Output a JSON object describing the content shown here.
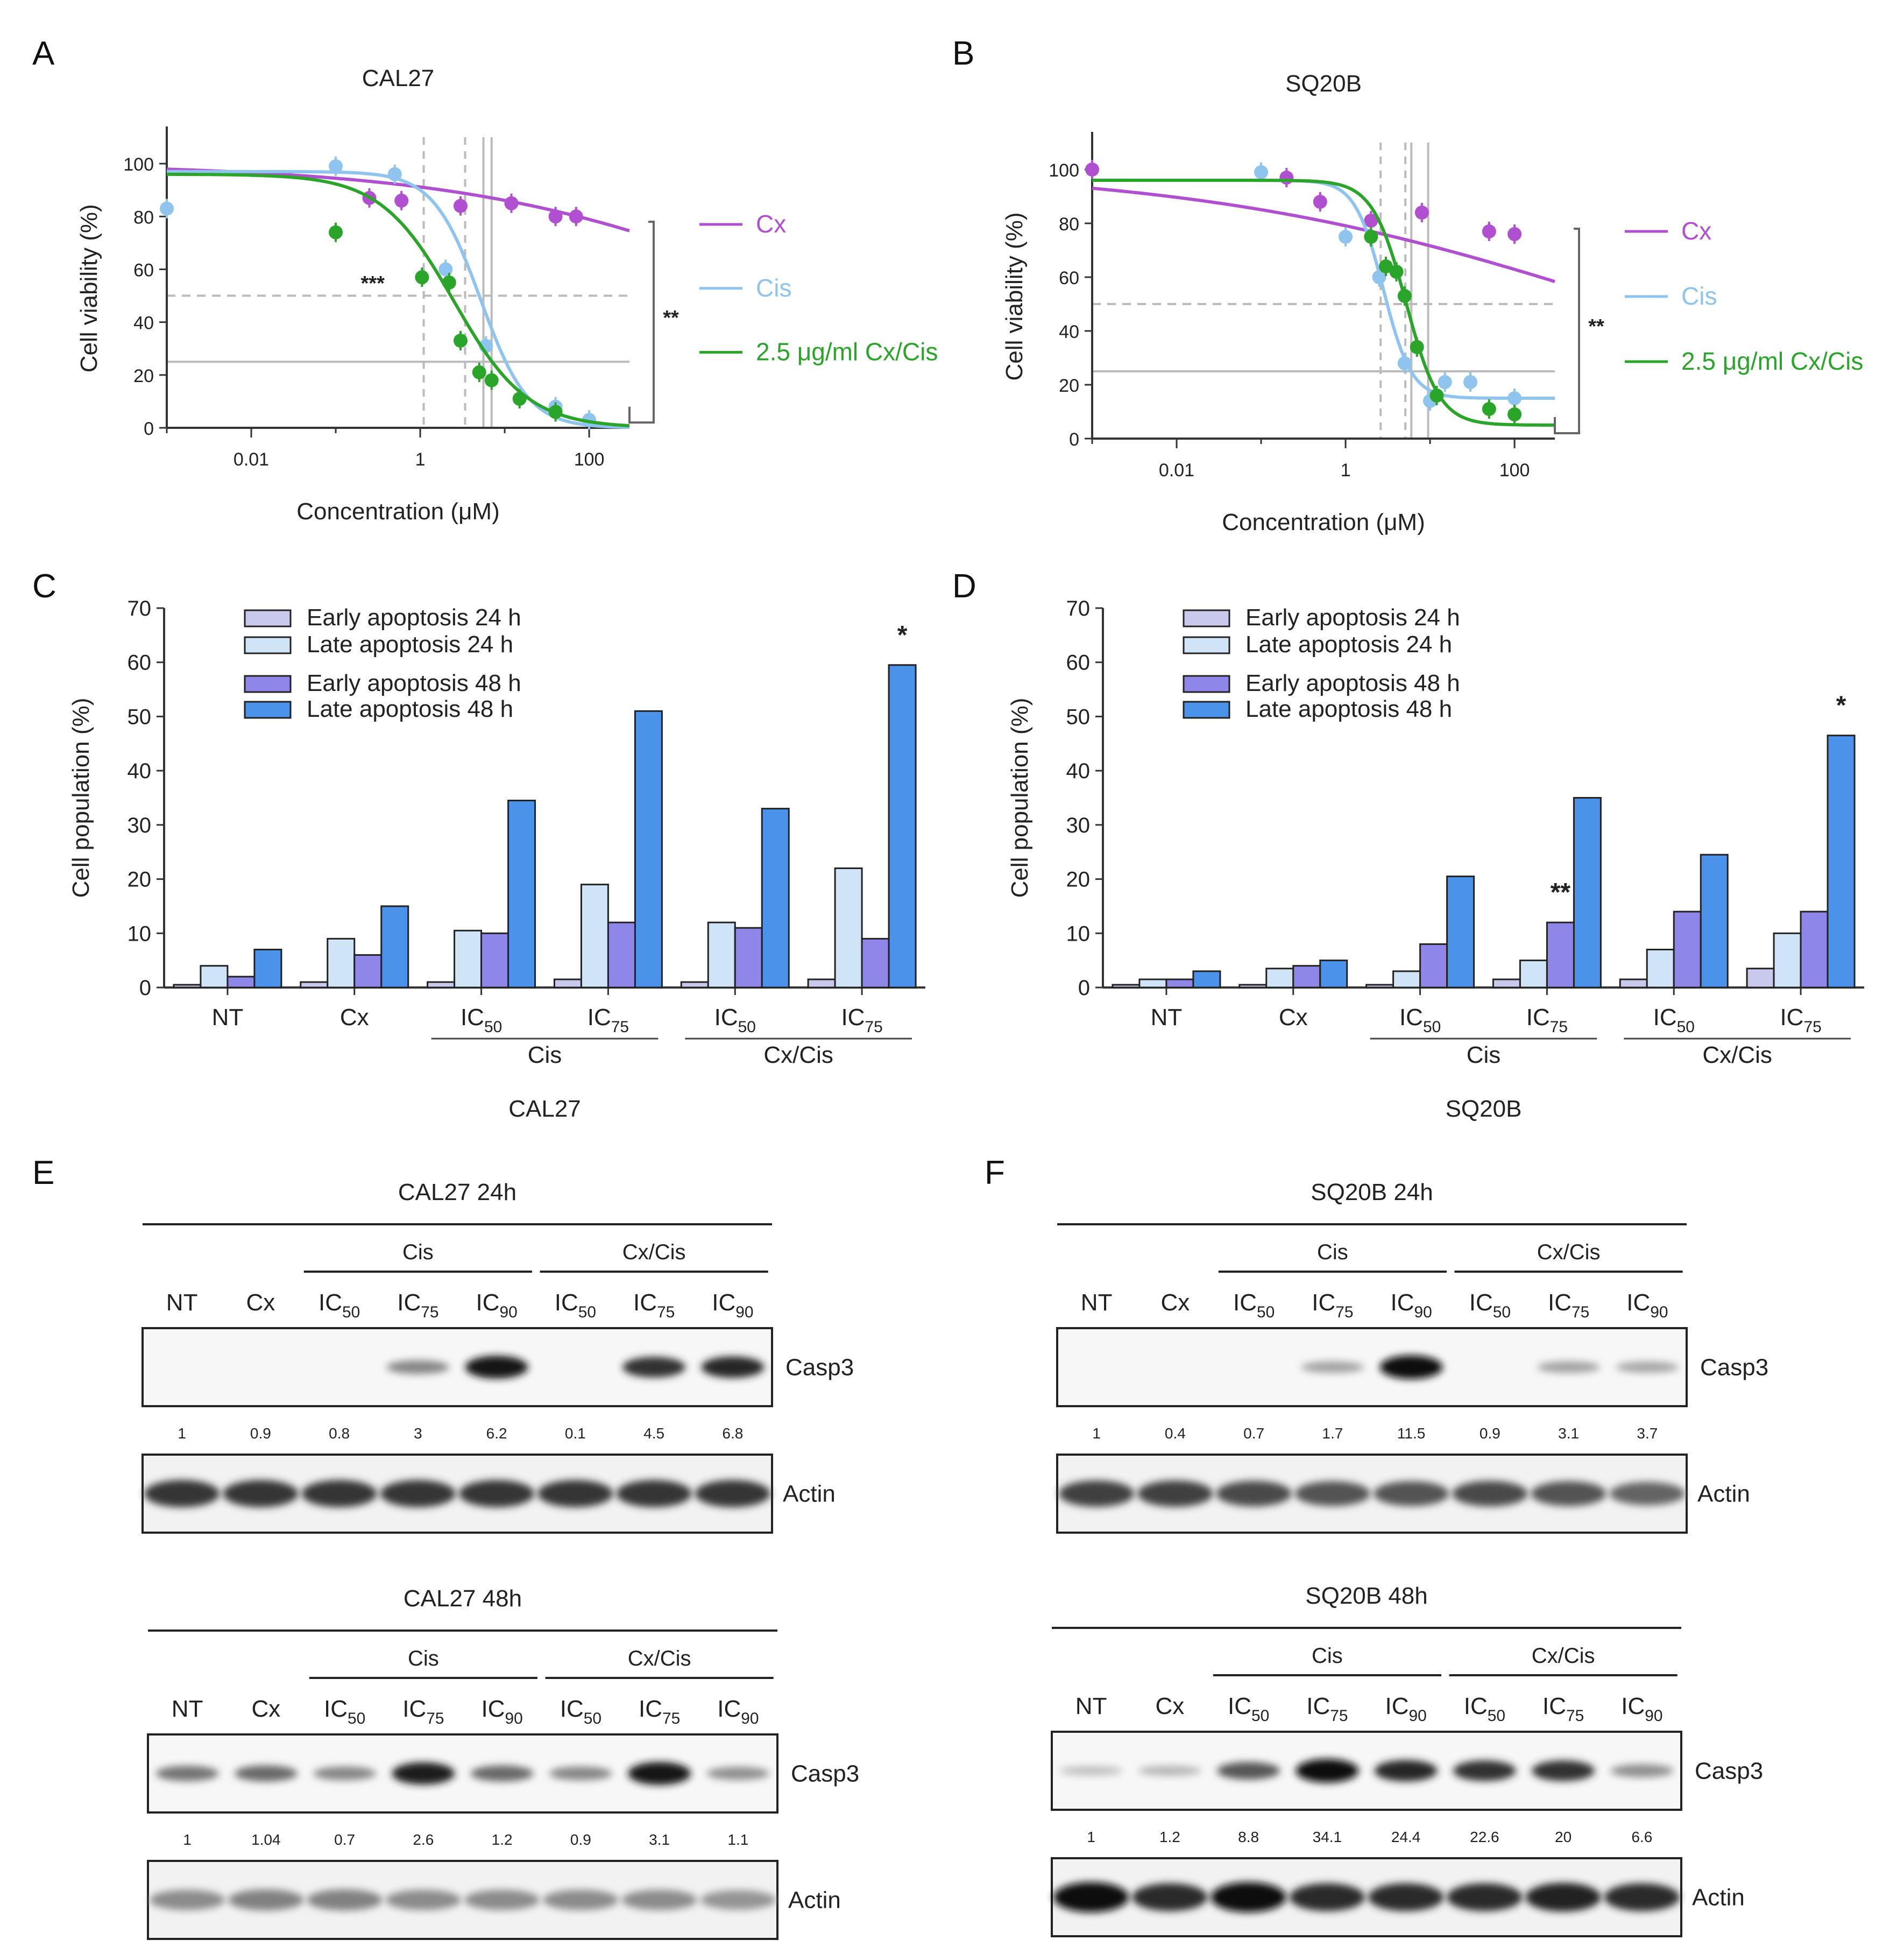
{
  "panel_letters": [
    "A",
    "B",
    "C",
    "D",
    "E",
    "F"
  ],
  "colors": {
    "cx": "#b04fcf",
    "cis": "#8ec4ee",
    "combo": "#2aa52a",
    "early24": "#c9c9ee",
    "late24": "#cfe4f6",
    "early48": "#8f86ea",
    "late48": "#4b93ea",
    "grid": "#bbbbbb"
  },
  "chart_data": [
    {
      "id": "A",
      "type": "line",
      "title": "CAL27",
      "xlabel": "Concentration (μM)",
      "ylabel": "Cell viability (%)",
      "xscale": "log",
      "xlim": [
        0.001,
        300
      ],
      "ylim": [
        0,
        110
      ],
      "xticks": [
        0.01,
        1,
        100
      ],
      "xtick_labels": [
        "0.01",
        "1",
        "100"
      ],
      "yticks": [
        0,
        20,
        40,
        60,
        80,
        100
      ],
      "ref_lines_y": [
        {
          "y": 50,
          "style": "dashed"
        },
        {
          "y": 25,
          "style": "solid"
        }
      ],
      "ref_lines_x": [
        {
          "x": 1.1,
          "style": "dashed"
        },
        {
          "x": 3.4,
          "style": "dashed"
        },
        {
          "x": 5.6,
          "style": "solid"
        },
        {
          "x": 7.0,
          "style": "solid"
        }
      ],
      "legend": [
        "Cx",
        "Cis",
        "2.5 μg/ml Cx/Cis"
      ],
      "significance": [
        "***",
        "**"
      ],
      "series": [
        {
          "name": "Cx",
          "color_key": "cx",
          "points": [
            [
              0.25,
              87
            ],
            [
              0.6,
              86
            ],
            [
              3,
              84
            ],
            [
              12,
              85
            ],
            [
              40,
              80
            ],
            [
              70,
              80
            ]
          ],
          "curve": {
            "top": 100,
            "bottom": 0,
            "ic50": 40000,
            "hill": 0.22
          }
        },
        {
          "name": "Cis",
          "color_key": "cis",
          "points": [
            [
              0.001,
              83
            ],
            [
              0.1,
              99
            ],
            [
              0.5,
              96
            ],
            [
              2,
              60
            ],
            [
              6,
              31
            ],
            [
              40,
              8
            ],
            [
              100,
              3
            ]
          ],
          "curve": {
            "top": 97,
            "bottom": 0,
            "ic50": 5.2,
            "hill": 1.55
          }
        },
        {
          "name": "2.5 μg/ml Cx/Cis",
          "color_key": "combo",
          "points": [
            [
              0.1,
              74
            ],
            [
              1.05,
              57
            ],
            [
              2.2,
              55
            ],
            [
              3,
              33
            ],
            [
              5,
              21
            ],
            [
              7,
              18
            ],
            [
              15,
              11
            ],
            [
              40,
              6
            ]
          ],
          "curve": {
            "top": 96,
            "bottom": 0,
            "ic50": 2.5,
            "hill": 1.0
          }
        }
      ]
    },
    {
      "id": "B",
      "type": "line",
      "title": "SQ20B",
      "xlabel": "Concentration (μM)",
      "ylabel": "Cell viability (%)",
      "xscale": "log",
      "xlim": [
        0.001,
        300
      ],
      "ylim": [
        0,
        110
      ],
      "xticks": [
        0.01,
        1,
        100
      ],
      "xtick_labels": [
        "0.01",
        "1",
        "100"
      ],
      "yticks": [
        0,
        20,
        40,
        60,
        80,
        100
      ],
      "ref_lines_y": [
        {
          "y": 50,
          "style": "dashed"
        },
        {
          "y": 25,
          "style": "solid"
        }
      ],
      "ref_lines_x": [
        {
          "x": 2.6,
          "style": "dashed"
        },
        {
          "x": 5.1,
          "style": "dashed"
        },
        {
          "x": 6.0,
          "style": "solid"
        },
        {
          "x": 9.5,
          "style": "solid"
        }
      ],
      "legend": [
        "Cx",
        "Cis",
        "2.5 μg/ml Cx/Cis"
      ],
      "significance": [
        "**"
      ],
      "series": [
        {
          "name": "Cx",
          "color_key": "cx",
          "points": [
            [
              0.001,
              100
            ],
            [
              0.2,
              97
            ],
            [
              0.5,
              88
            ],
            [
              2,
              81
            ],
            [
              8,
              84
            ],
            [
              50,
              77
            ],
            [
              100,
              76
            ]
          ],
          "curve": {
            "top": 101,
            "bottom": 0,
            "ic50": 1900,
            "hill": 0.17
          }
        },
        {
          "name": "Cis",
          "color_key": "cis",
          "points": [
            [
              0.1,
              99
            ],
            [
              1,
              75
            ],
            [
              2.5,
              60
            ],
            [
              5,
              28
            ],
            [
              10,
              14
            ],
            [
              15,
              21
            ],
            [
              30,
              21
            ],
            [
              100,
              15
            ]
          ],
          "curve": {
            "top": 96,
            "bottom": 15,
            "ic50": 2.8,
            "hill": 2.6
          }
        },
        {
          "name": "2.5 μg/ml Cx/Cis",
          "color_key": "combo",
          "points": [
            [
              2,
              75
            ],
            [
              3,
              64
            ],
            [
              4,
              62
            ],
            [
              5,
              53
            ],
            [
              7,
              34
            ],
            [
              12,
              16
            ],
            [
              50,
              11
            ],
            [
              100,
              9
            ]
          ],
          "curve": {
            "top": 96,
            "bottom": 5,
            "ic50": 5.2,
            "hill": 2.2
          }
        }
      ]
    },
    {
      "id": "C",
      "type": "bar",
      "title": "CAL27",
      "ylabel": "Cell population (%)",
      "ylim": [
        0,
        70
      ],
      "yticks": [
        0,
        10,
        20,
        30,
        40,
        50,
        60,
        70
      ],
      "categories": [
        "NT",
        "Cx",
        "IC50",
        "IC75",
        "IC50",
        "IC75"
      ],
      "category_labels": [
        {
          "main": "NT",
          "sub": ""
        },
        {
          "main": "Cx",
          "sub": ""
        },
        {
          "main": "IC",
          "sub": "50"
        },
        {
          "main": "IC",
          "sub": "75"
        },
        {
          "main": "IC",
          "sub": "50"
        },
        {
          "main": "IC",
          "sub": "75"
        }
      ],
      "group_labels": [
        {
          "label": "Cis",
          "from": 2,
          "to": 3
        },
        {
          "label": "Cx/Cis",
          "from": 4,
          "to": 5
        }
      ],
      "annotations": [
        {
          "text": "*",
          "category": 5,
          "series": 3
        }
      ],
      "series": [
        {
          "name": "Early apoptosis 24 h",
          "color_key": "early24",
          "values": [
            0.5,
            1,
            1,
            1.5,
            1,
            1.5
          ]
        },
        {
          "name": "Late apoptosis 24 h",
          "color_key": "late24",
          "values": [
            4,
            9,
            10.5,
            19,
            12,
            22
          ]
        },
        {
          "name": "Early apoptosis 48 h",
          "color_key": "early48",
          "values": [
            2,
            6,
            10,
            12,
            11,
            9
          ]
        },
        {
          "name": "Late apoptosis 48 h",
          "color_key": "late48",
          "values": [
            7,
            15,
            34.5,
            51,
            33,
            59.5
          ]
        }
      ]
    },
    {
      "id": "D",
      "type": "bar",
      "title": "SQ20B",
      "ylabel": "Cell population (%)",
      "ylim": [
        0,
        70
      ],
      "yticks": [
        0,
        10,
        20,
        30,
        40,
        50,
        60,
        70
      ],
      "categories": [
        "NT",
        "Cx",
        "IC50",
        "IC75",
        "IC50",
        "IC75"
      ],
      "category_labels": [
        {
          "main": "NT",
          "sub": ""
        },
        {
          "main": "Cx",
          "sub": ""
        },
        {
          "main": "IC",
          "sub": "50"
        },
        {
          "main": "IC",
          "sub": "75"
        },
        {
          "main": "IC",
          "sub": "50"
        },
        {
          "main": "IC",
          "sub": "75"
        }
      ],
      "group_labels": [
        {
          "label": "Cis",
          "from": 2,
          "to": 3
        },
        {
          "label": "Cx/Cis",
          "from": 4,
          "to": 5
        }
      ],
      "annotations": [
        {
          "text": "**",
          "category": 3,
          "series": 2
        },
        {
          "text": "*",
          "category": 5,
          "series": 3
        }
      ],
      "series": [
        {
          "name": "Early apoptosis 24 h",
          "color_key": "early24",
          "values": [
            0.5,
            0.5,
            0.5,
            1.5,
            1.5,
            3.5
          ]
        },
        {
          "name": "Late apoptosis 24 h",
          "color_key": "late24",
          "values": [
            1.5,
            3.5,
            3,
            5,
            7,
            10
          ]
        },
        {
          "name": "Early apoptosis 48 h",
          "color_key": "early48",
          "values": [
            1.5,
            4,
            8,
            12,
            14,
            14
          ]
        },
        {
          "name": "Late apoptosis 48 h",
          "color_key": "late48",
          "values": [
            3,
            5,
            20.5,
            35,
            24.5,
            46.5
          ]
        }
      ]
    }
  ],
  "western_blots": [
    {
      "id": "E-24h",
      "title": "CAL27  24h",
      "groups": [
        {
          "label": "Cis",
          "from": 2,
          "to": 4
        },
        {
          "label": "Cx/Cis",
          "from": 5,
          "to": 7
        }
      ],
      "lanes": [
        {
          "main": "NT",
          "sub": ""
        },
        {
          "main": "Cx",
          "sub": ""
        },
        {
          "main": "IC",
          "sub": "50"
        },
        {
          "main": "IC",
          "sub": "75"
        },
        {
          "main": "IC",
          "sub": "90"
        },
        {
          "main": "IC",
          "sub": "50"
        },
        {
          "main": "IC",
          "sub": "75"
        },
        {
          "main": "IC",
          "sub": "90"
        }
      ],
      "target_label": "Casp3",
      "loading_label": "Actin",
      "quantification": [
        "1",
        "0.9",
        "0.8",
        "3",
        "6.2",
        "0.1",
        "4.5",
        "6.8"
      ],
      "target_intensity": [
        0,
        0,
        0,
        0.35,
        0.95,
        0,
        0.8,
        0.85
      ],
      "loading_intensity": [
        0.8,
        0.8,
        0.8,
        0.8,
        0.8,
        0.8,
        0.8,
        0.8
      ]
    },
    {
      "id": "E-48h",
      "title": "CAL27  48h",
      "groups": [
        {
          "label": "Cis",
          "from": 2,
          "to": 4
        },
        {
          "label": "Cx/Cis",
          "from": 5,
          "to": 7
        }
      ],
      "lanes": [
        {
          "main": "NT",
          "sub": ""
        },
        {
          "main": "Cx",
          "sub": ""
        },
        {
          "main": "IC",
          "sub": "50"
        },
        {
          "main": "IC",
          "sub": "75"
        },
        {
          "main": "IC",
          "sub": "90"
        },
        {
          "main": "IC",
          "sub": "50"
        },
        {
          "main": "IC",
          "sub": "75"
        },
        {
          "main": "IC",
          "sub": "90"
        }
      ],
      "target_label": "Casp3",
      "loading_label": "Actin",
      "quantification": [
        "1",
        "1.04",
        "0.7",
        "2.6",
        "1.2",
        "0.9",
        "3.1",
        "1.1"
      ],
      "target_intensity": [
        0.45,
        0.5,
        0.35,
        0.9,
        0.5,
        0.35,
        0.95,
        0.3
      ],
      "loading_intensity": [
        0.35,
        0.4,
        0.4,
        0.35,
        0.35,
        0.35,
        0.35,
        0.3
      ]
    },
    {
      "id": "F-24h",
      "title": "SQ20B  24h",
      "groups": [
        {
          "label": "Cis",
          "from": 2,
          "to": 4
        },
        {
          "label": "Cx/Cis",
          "from": 5,
          "to": 7
        }
      ],
      "lanes": [
        {
          "main": "NT",
          "sub": ""
        },
        {
          "main": "Cx",
          "sub": ""
        },
        {
          "main": "IC",
          "sub": "50"
        },
        {
          "main": "IC",
          "sub": "75"
        },
        {
          "main": "IC",
          "sub": "90"
        },
        {
          "main": "IC",
          "sub": "50"
        },
        {
          "main": "IC",
          "sub": "75"
        },
        {
          "main": "IC",
          "sub": "90"
        }
      ],
      "target_label": "Casp3",
      "loading_label": "Actin",
      "quantification": [
        "1",
        "0.4",
        "0.7",
        "1.7",
        "11.5",
        "0.9",
        "3.1",
        "3.7"
      ],
      "target_intensity": [
        0,
        0,
        0,
        0.2,
        1,
        0,
        0.2,
        0.18
      ],
      "loading_intensity": [
        0.75,
        0.75,
        0.7,
        0.65,
        0.65,
        0.7,
        0.65,
        0.55
      ]
    },
    {
      "id": "F-48h",
      "title": "SQ20B  48h",
      "groups": [
        {
          "label": "Cis",
          "from": 2,
          "to": 4
        },
        {
          "label": "Cx/Cis",
          "from": 5,
          "to": 7
        }
      ],
      "lanes": [
        {
          "main": "NT",
          "sub": ""
        },
        {
          "main": "Cx",
          "sub": ""
        },
        {
          "main": "IC",
          "sub": "50"
        },
        {
          "main": "IC",
          "sub": "75"
        },
        {
          "main": "IC",
          "sub": "90"
        },
        {
          "main": "IC",
          "sub": "50"
        },
        {
          "main": "IC",
          "sub": "75"
        },
        {
          "main": "IC",
          "sub": "90"
        }
      ],
      "target_label": "Casp3",
      "loading_label": "Actin",
      "quantification": [
        "1",
        "1.2",
        "8.8",
        "34.1",
        "24.4",
        "22.6",
        "20",
        "6.6"
      ],
      "target_intensity": [
        0.05,
        0.1,
        0.6,
        1,
        0.85,
        0.8,
        0.8,
        0.3
      ],
      "loading_intensity": [
        1,
        0.85,
        1,
        0.85,
        0.85,
        0.85,
        0.9,
        0.85
      ]
    }
  ]
}
